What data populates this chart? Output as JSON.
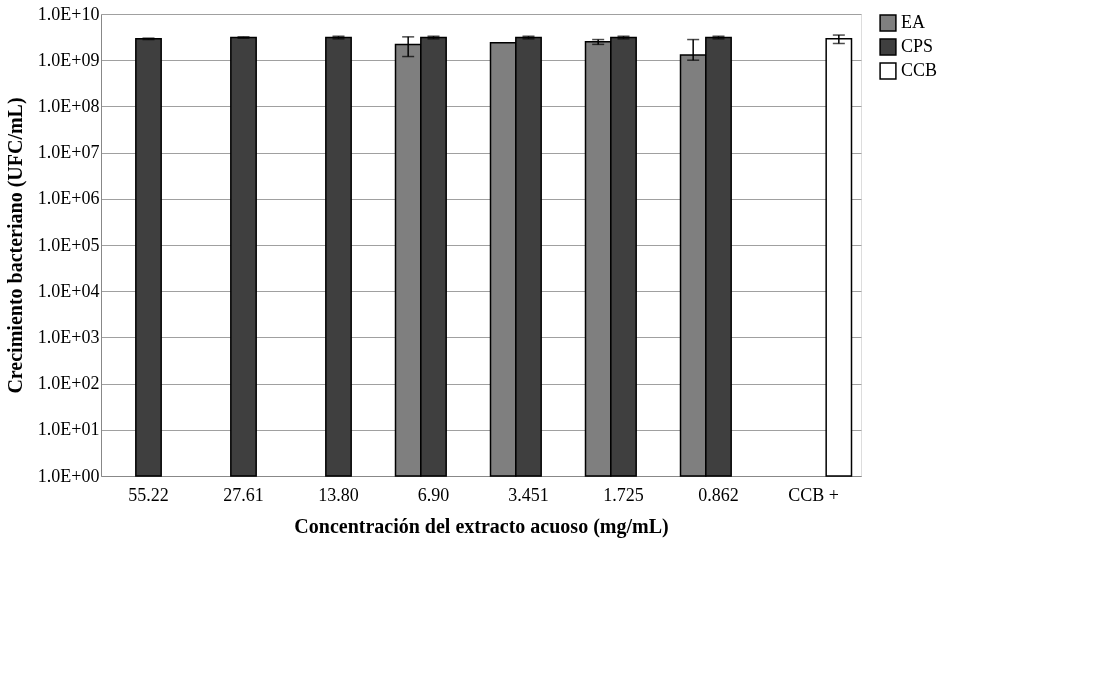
{
  "chart_data": {
    "type": "bar",
    "xlabel": "Concentración del extracto acuoso (mg/mL)",
    "ylabel": "Crecimiento bacteriano (UFC/mL)",
    "categories": [
      "55.22",
      "27.61",
      "13.80",
      "6.90",
      "3.451",
      "1.725",
      "0.862",
      "CCB +"
    ],
    "series": [
      {
        "name": "EA",
        "color": "#7f7f7f",
        "values": [
          null,
          null,
          null,
          2200000000.0,
          2400000000.0,
          2500000000.0,
          1300000000.0,
          null
        ],
        "errors": [
          null,
          null,
          null,
          1000000000.0,
          null,
          300000000.0,
          [
            1000000000.0,
            2800000000.0
          ],
          null
        ]
      },
      {
        "name": "CPS",
        "color": "#3f3f3f",
        "values": [
          2900000000.0,
          3100000000.0,
          3100000000.0,
          3100000000.0,
          3100000000.0,
          3100000000.0,
          3100000000.0,
          null
        ],
        "errors": [
          100000000.0,
          100000000.0,
          200000000.0,
          200000000.0,
          200000000.0,
          200000000.0,
          200000000.0,
          null
        ]
      },
      {
        "name": "CCB",
        "color": "#ffffff",
        "values": [
          null,
          null,
          null,
          null,
          null,
          null,
          null,
          2900000000.0
        ],
        "errors": [
          null,
          null,
          null,
          null,
          null,
          null,
          null,
          600000000.0
        ]
      }
    ],
    "log": true,
    "ylim": [
      1,
      10000000000.0
    ],
    "yticks": [
      {
        "value": 1,
        "label": "1.0E+00"
      },
      {
        "value": 10,
        "label": "1.0E+01"
      },
      {
        "value": 100,
        "label": "1.0E+02"
      },
      {
        "value": 1000,
        "label": "1.0E+03"
      },
      {
        "value": 10000,
        "label": "1.0E+04"
      },
      {
        "value": 100000,
        "label": "1.0E+05"
      },
      {
        "value": 1000000,
        "label": "1.0E+06"
      },
      {
        "value": 10000000,
        "label": "1.0E+07"
      },
      {
        "value": 100000000,
        "label": "1.0E+08"
      },
      {
        "value": 1000000000,
        "label": "1.0E+09"
      },
      {
        "value": 10000000000,
        "label": "1.0E+10"
      }
    ],
    "grid": "y",
    "legend": "right"
  }
}
